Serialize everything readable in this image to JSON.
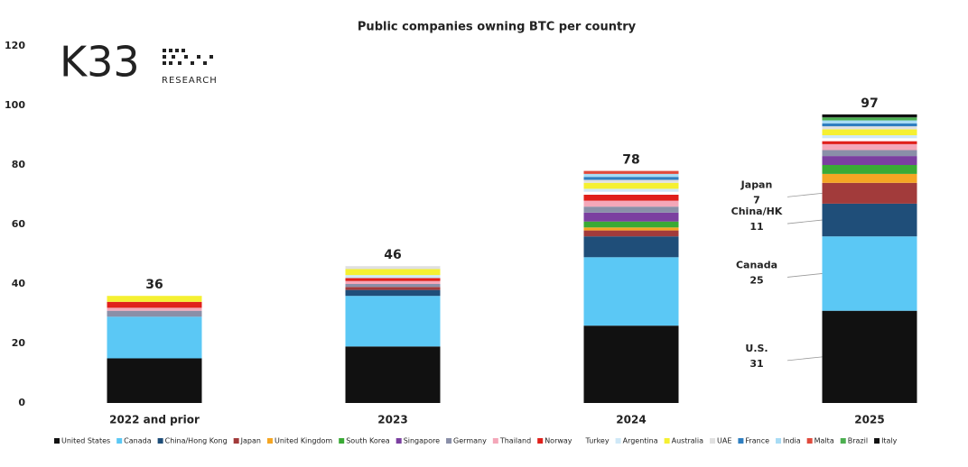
{
  "chart_data": {
    "type": "stacked-bar",
    "title": "Public companies owning BTC per country",
    "logo": {
      "name": "K33",
      "sub": "RESEARCH"
    },
    "categories": [
      "2022 and prior",
      "2023",
      "2024",
      "2025"
    ],
    "totals": [
      36,
      46,
      78,
      97
    ],
    "ylim": [
      0,
      120
    ],
    "yticks": [
      0,
      20,
      40,
      60,
      80,
      100,
      120
    ],
    "grid": false,
    "series": [
      {
        "name": "United States",
        "label": "U.S.",
        "color": "#111111",
        "values": [
          15,
          19,
          26,
          31
        ]
      },
      {
        "name": "Canada",
        "label": "Canada",
        "color": "#5bc8f5",
        "values": [
          14,
          17,
          23,
          25
        ]
      },
      {
        "name": "China/Hong Kong",
        "label": "China/HK",
        "color": "#1f4e79",
        "values": [
          0,
          2,
          7,
          11
        ]
      },
      {
        "name": "Japan",
        "label": "Japan",
        "color": "#a23b3b",
        "values": [
          0,
          1,
          2,
          7
        ]
      },
      {
        "name": "United Kingdom",
        "color": "#f5a623",
        "values": [
          0,
          0,
          1,
          3
        ]
      },
      {
        "name": "South Korea",
        "color": "#3aaa35",
        "values": [
          0,
          0,
          2,
          3
        ]
      },
      {
        "name": "Singapore",
        "color": "#7b3fa0",
        "values": [
          0,
          0,
          3,
          3
        ]
      },
      {
        "name": "Germany",
        "color": "#8a8fa8",
        "values": [
          2,
          1,
          2,
          2
        ]
      },
      {
        "name": "Thailand",
        "color": "#f4a7b9",
        "values": [
          1,
          1,
          2,
          2
        ]
      },
      {
        "name": "Norway",
        "color": "#e0201b",
        "values": [
          2,
          1,
          2,
          1
        ]
      },
      {
        "name": "Turkey",
        "color": "#ffffff",
        "values": [
          0,
          0,
          1,
          1
        ]
      },
      {
        "name": "Argentina",
        "color": "#cfe8f7",
        "values": [
          0,
          1,
          1,
          1
        ]
      },
      {
        "name": "Australia",
        "color": "#f5f032",
        "values": [
          2,
          2,
          2,
          2
        ]
      },
      {
        "name": "UAE",
        "color": "#e0e0e0",
        "values": [
          0,
          1,
          1,
          1
        ]
      },
      {
        "name": "France",
        "color": "#2f7fc1",
        "values": [
          0,
          0,
          1,
          1
        ]
      },
      {
        "name": "India",
        "color": "#a8dcf5",
        "values": [
          0,
          0,
          1,
          1
        ]
      },
      {
        "name": "Malta",
        "color": "#e04a3c",
        "values": [
          0,
          0,
          1,
          0
        ]
      },
      {
        "name": "Brazil",
        "color": "#4caf50",
        "values": [
          0,
          0,
          0,
          1
        ]
      },
      {
        "name": "Italy",
        "color": "#111111",
        "values": [
          0,
          0,
          0,
          1
        ]
      }
    ]
  }
}
